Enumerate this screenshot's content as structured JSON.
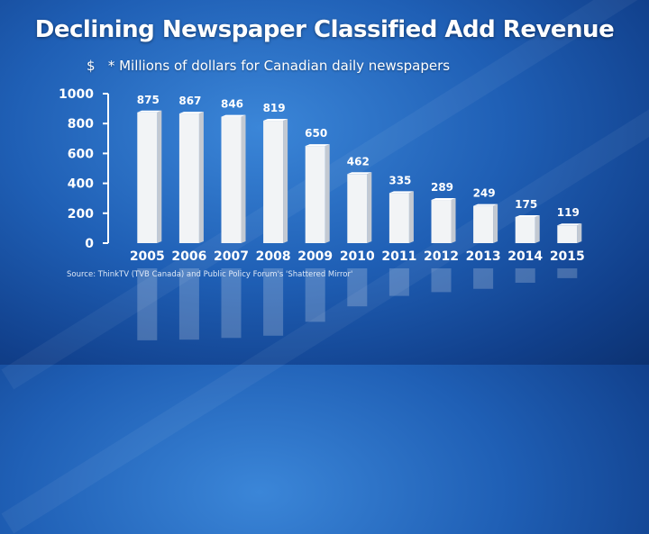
{
  "chart_data": {
    "type": "bar",
    "title": "Declining Newspaper Classified Add Revenue",
    "subtitle": "$   * Millions of dollars for Canadian daily newspapers",
    "source": "Source: ThinkTV (TVB Canada) and Public Policy Forum's 'Shattered Mirror'",
    "categories": [
      "2005",
      "2006",
      "2007",
      "2008",
      "2009",
      "2010",
      "2011",
      "2012",
      "2013",
      "2014",
      "2015"
    ],
    "values": [
      875,
      867,
      846,
      819,
      650,
      462,
      335,
      289,
      249,
      175,
      119
    ],
    "ylim": [
      0,
      1000
    ],
    "yticks": [
      0,
      200,
      400,
      600,
      800,
      1000
    ],
    "xlabel": "",
    "ylabel": "",
    "grid": false,
    "colors": {
      "bar_front": "#f2f4f6",
      "bar_side": "#c3c9d2",
      "bar_top": "#ffffff",
      "background": "#1f5fb5"
    }
  }
}
